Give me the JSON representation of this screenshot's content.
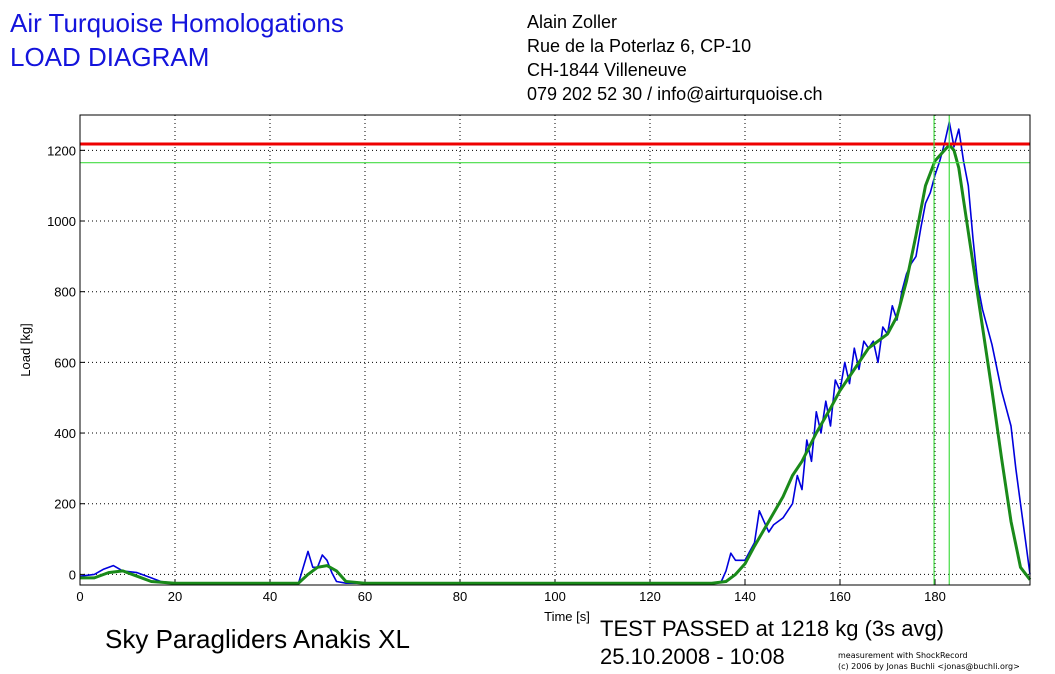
{
  "header": {
    "title_line1": "Air Turquoise Homologations",
    "title_line2": "LOAD DIAGRAM",
    "address": [
      "Alain Zoller",
      "Rue de la Poterlaz 6, CP-10",
      "CH-1844 Villeneuve",
      "079 202 52 30 / info@airturquoise.ch"
    ]
  },
  "footer": {
    "product": "Sky Paragliders Anakis XL",
    "result_line1": "TEST PASSED at 1218 kg (3s avg)",
    "result_line2": "25.10.2008 - 10:08",
    "credit_line1": "measurement with ShockRecord",
    "credit_line2": "(c) 2006 by Jonas Buchli <jonas@buchli.org>"
  },
  "colors": {
    "raw": "#0000dd",
    "average": "#1a8a1a",
    "threshold": "#ee0000",
    "marker": "#44dd44",
    "grid": "#000000"
  },
  "chart_data": {
    "type": "line",
    "xlabel": "Time [s]",
    "ylabel": "Load [kg]",
    "xlim": [
      0,
      200
    ],
    "ylim": [
      -30,
      1300
    ],
    "x_ticks": [
      0,
      20,
      40,
      60,
      80,
      100,
      120,
      140,
      160,
      180
    ],
    "y_ticks": [
      0,
      200,
      400,
      600,
      800,
      1000,
      1200
    ],
    "grid": true,
    "threshold_line": 1218,
    "level_marker": 1165,
    "vertical_markers": [
      179.8,
      183
    ],
    "series": [
      {
        "role": "raw",
        "x": [
          0,
          3,
          5,
          7,
          9,
          12,
          15,
          17,
          20,
          40,
          46,
          48,
          49,
          50,
          51,
          52,
          53,
          54,
          56,
          60,
          100,
          133,
          135,
          136,
          137,
          138,
          140,
          142,
          143,
          144,
          145,
          146,
          148,
          150,
          151,
          152,
          153,
          154,
          155,
          156,
          157,
          158,
          159,
          160,
          161,
          162,
          163,
          164,
          165,
          166,
          167,
          168,
          169,
          170,
          171,
          172,
          173,
          174,
          175,
          176,
          177,
          178,
          179,
          180,
          181,
          182,
          183,
          184,
          185,
          186,
          187,
          188,
          189,
          190,
          192,
          194,
          196,
          197,
          198,
          199,
          200
        ],
        "y": [
          -5,
          0,
          15,
          25,
          10,
          5,
          -10,
          -20,
          -25,
          -25,
          -25,
          65,
          20,
          20,
          55,
          40,
          5,
          -20,
          -25,
          -25,
          -25,
          -25,
          -20,
          10,
          60,
          40,
          40,
          90,
          180,
          150,
          120,
          140,
          160,
          200,
          280,
          240,
          380,
          320,
          460,
          400,
          490,
          420,
          550,
          520,
          600,
          540,
          640,
          580,
          660,
          640,
          660,
          600,
          700,
          680,
          760,
          720,
          800,
          850,
          880,
          900,
          980,
          1050,
          1080,
          1130,
          1170,
          1220,
          1280,
          1210,
          1260,
          1170,
          1100,
          950,
          820,
          750,
          650,
          520,
          420,
          300,
          200,
          100,
          0
        ]
      },
      {
        "role": "average",
        "x": [
          0,
          3,
          6,
          9,
          12,
          15,
          20,
          40,
          46,
          48,
          50,
          52,
          54,
          56,
          60,
          100,
          133,
          136,
          138,
          140,
          142,
          145,
          148,
          150,
          152,
          155,
          158,
          160,
          163,
          166,
          170,
          172,
          174,
          176,
          178,
          180,
          182,
          183,
          184,
          185,
          186,
          188,
          190,
          192,
          194,
          196,
          198,
          200
        ],
        "y": [
          -10,
          -10,
          5,
          10,
          -5,
          -20,
          -25,
          -25,
          -25,
          0,
          20,
          25,
          10,
          -20,
          -25,
          -25,
          -25,
          -20,
          0,
          30,
          80,
          150,
          220,
          280,
          320,
          400,
          470,
          520,
          580,
          640,
          680,
          730,
          830,
          960,
          1100,
          1170,
          1200,
          1215,
          1200,
          1150,
          1060,
          880,
          700,
          520,
          330,
          150,
          20,
          -15
        ]
      }
    ]
  }
}
